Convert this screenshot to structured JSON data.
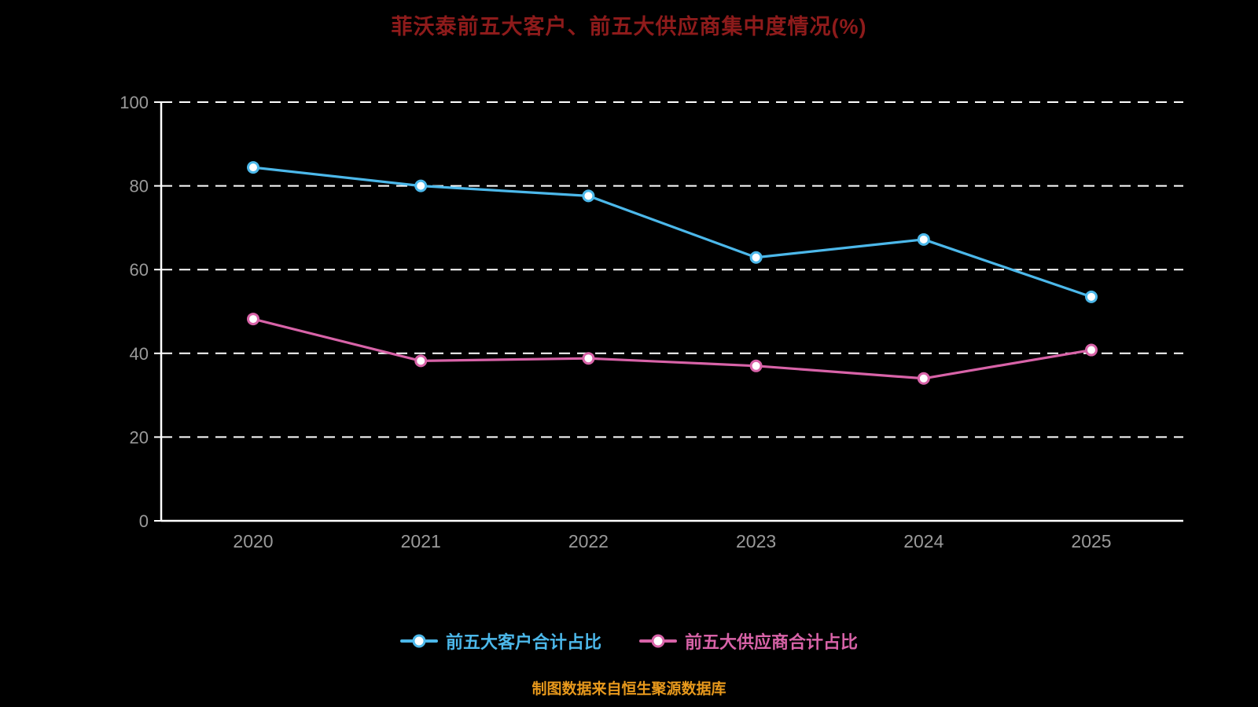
{
  "title": "菲沃泰前五大客户、前五大供应商集中度情况(%)",
  "footer": "制图数据来自恒生聚源数据库",
  "colors": {
    "background": "#000000",
    "title": "#8e1b1b",
    "footer": "#e8991c",
    "axis": "#ffffff",
    "tick_label": "#9a9a9a",
    "series1": "#4cb8ea",
    "series2": "#d863a8"
  },
  "legend": {
    "items": [
      {
        "label": "前五大客户合计占比"
      },
      {
        "label": "前五大供应商合计占比"
      }
    ]
  },
  "chart_data": {
    "type": "line",
    "title": "菲沃泰前五大客户、前五大供应商集中度情况(%)",
    "x": [
      "2020",
      "2021",
      "2022",
      "2023",
      "2024",
      "2025"
    ],
    "series": [
      {
        "name": "前五大客户合计占比",
        "color": "#4cb8ea",
        "values": [
          84.4,
          80.0,
          77.6,
          62.9,
          67.2,
          53.5
        ]
      },
      {
        "name": "前五大供应商合计占比",
        "color": "#d863a8",
        "values": [
          48.2,
          38.2,
          38.8,
          37.0,
          34.0,
          40.8
        ]
      }
    ],
    "xlabel": "",
    "ylabel": "",
    "ylim": [
      0,
      100
    ],
    "yticks": [
      0,
      20,
      40,
      60,
      80,
      100
    ],
    "grid": "dashed-horizontal",
    "legend_position": "bottom",
    "marker": "circle-white-fill"
  }
}
